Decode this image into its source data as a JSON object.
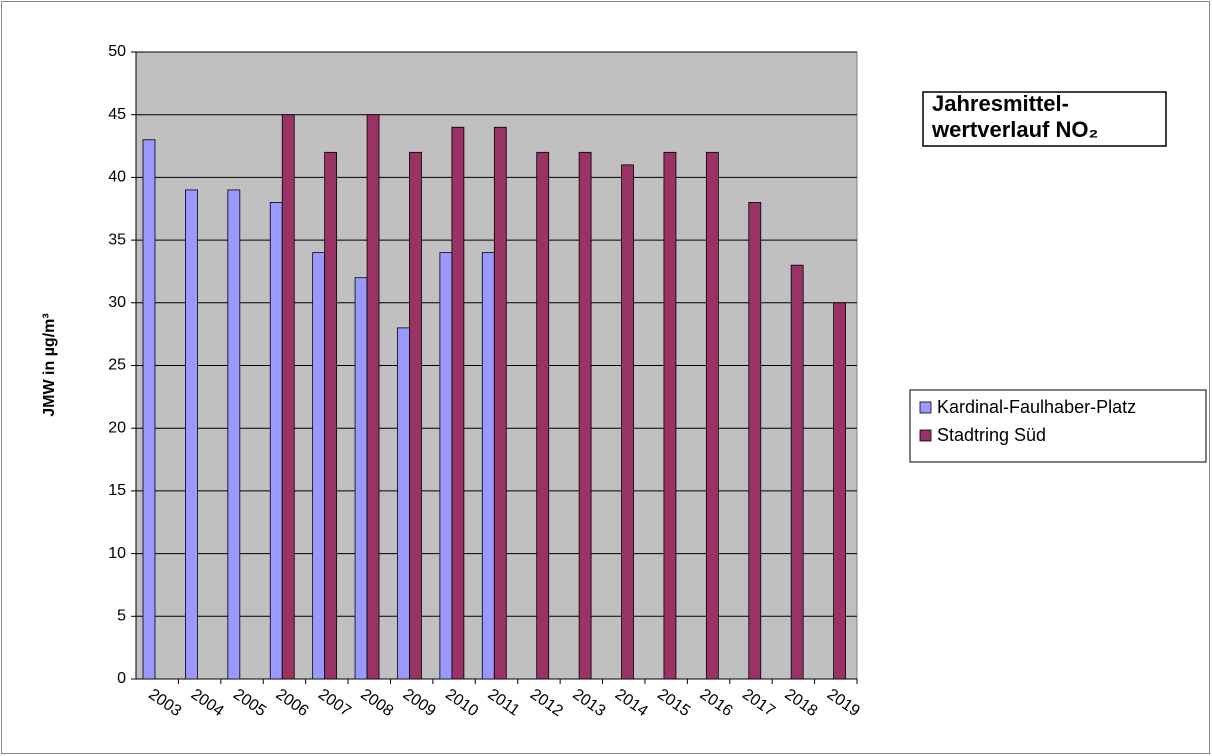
{
  "chart_data": {
    "type": "bar",
    "title": [
      "Jahresmittel-",
      "wertverlauf NO₂"
    ],
    "y_label": "JMW in µg/m³",
    "categories": [
      "2003",
      "2004",
      "2005",
      "2006",
      "2007",
      "2008",
      "2009",
      "2010",
      "2011",
      "2012",
      "2013",
      "2014",
      "2015",
      "2016",
      "2017",
      "2018",
      "2019"
    ],
    "series": [
      {
        "name": "Kardinal-Faulhaber-Platz",
        "color": "#9999ff",
        "values": [
          43,
          39,
          39,
          38,
          34,
          32,
          28,
          34,
          34,
          null,
          null,
          null,
          null,
          null,
          null,
          null,
          null
        ]
      },
      {
        "name": "Stadtring Süd",
        "color": "#993366",
        "values": [
          null,
          null,
          null,
          45,
          42,
          45,
          42,
          44,
          44,
          42,
          42,
          41,
          42,
          42,
          38,
          33,
          30
        ]
      }
    ],
    "ylim": [
      0,
      50
    ],
    "yticks": [
      0,
      5,
      10,
      15,
      20,
      25,
      30,
      35,
      40,
      45,
      50
    ],
    "grid": true,
    "legend": "right",
    "plot_background": "#c0c0c0"
  }
}
